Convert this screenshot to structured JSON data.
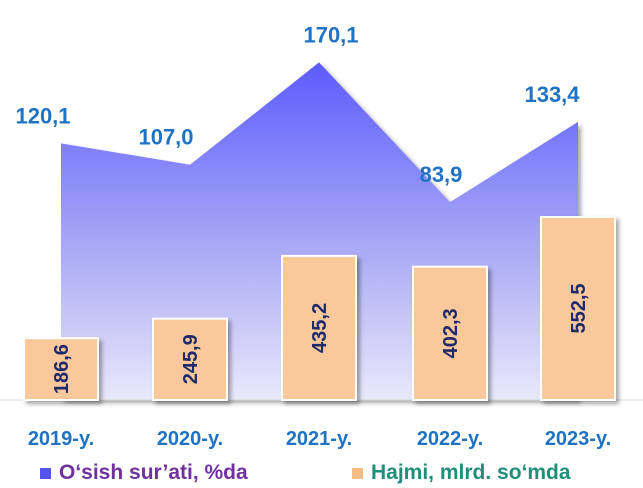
{
  "chart_data": {
    "type": "bar",
    "categories": [
      "2019-y.",
      "2020-y.",
      "2021-y.",
      "2022-y.",
      "2023-y."
    ],
    "series": [
      {
        "name": "O‘sish sur’ati, %da",
        "chart": "area",
        "values": [
          120.1,
          107.0,
          170.1,
          83.9,
          133.4
        ],
        "labels": [
          "120,1",
          "107,0",
          "170,1",
          "83,9",
          "133,4"
        ],
        "color": "#6f6fff"
      },
      {
        "name": "Hajmi, mlrd. so‘mda",
        "chart": "bar",
        "values": [
          186.6,
          245.9,
          435.2,
          402.3,
          552.5
        ],
        "labels": [
          "186,6",
          "245,9",
          "435,2",
          "402,3",
          "552,5"
        ],
        "color": "#f9c89b"
      }
    ],
    "title": "",
    "xlabel": "",
    "ylabel": "",
    "grid": false,
    "legend": "bottom",
    "label_colors": {
      "growth": "#1f73c4",
      "volume": "#1f2a6b",
      "categories": "#1f73c4"
    }
  }
}
